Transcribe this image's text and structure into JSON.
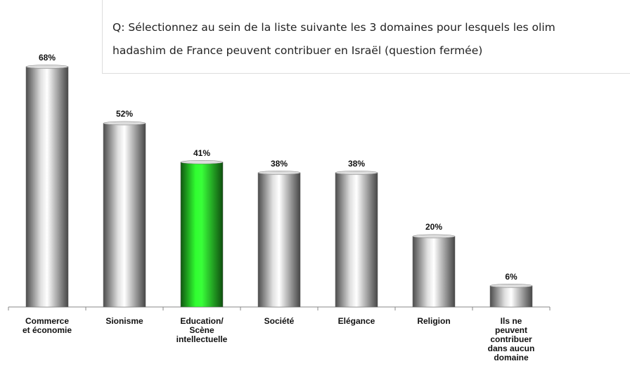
{
  "chart_data": {
    "type": "bar",
    "title": "Q: Sélectionnez au sein de la liste suivante les 3 domaines pour lesquels les olim\nhadashim de France peuvent contribuer en Israël (question fermée)",
    "categories": [
      "Commerce\net économie",
      "Sionisme",
      "Education/\nScène\nintellectuelle",
      "Société",
      "Elégance",
      "Religion",
      "Ils ne\npeuvent\ncontribuer\ndans aucun\ndomaine"
    ],
    "values": [
      68,
      52,
      41,
      38,
      38,
      20,
      6
    ],
    "value_labels": [
      "68%",
      "52%",
      "41%",
      "38%",
      "38%",
      "20%",
      "6%"
    ],
    "colors": [
      "#8c8c8c",
      "#8c8c8c",
      "#1e9e1e",
      "#8c8c8c",
      "#8c8c8c",
      "#8c8c8c",
      "#8c8c8c"
    ]
  }
}
